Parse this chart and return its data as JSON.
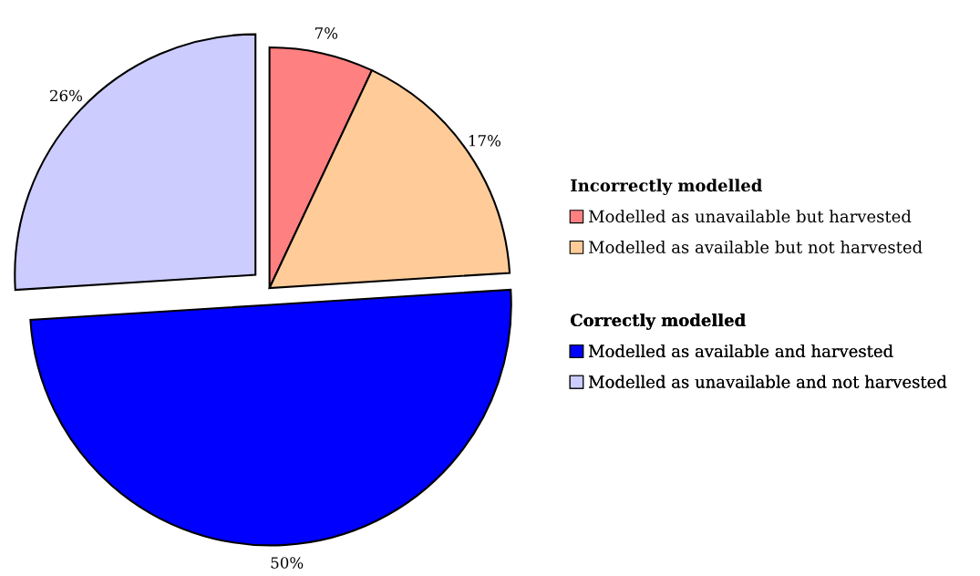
{
  "chart_data": {
    "type": "pie",
    "categories": [
      "Modelled as unavailable but harvested",
      "Modelled as available but not harvested",
      "Modelled as available and harvested",
      "Modelled as unavailable and not harvested"
    ],
    "values": [
      7,
      17,
      50,
      26
    ],
    "colors": [
      "#ff8080",
      "#ffcc99",
      "#0000ff",
      "#ccccff"
    ],
    "value_labels": [
      "7%",
      "17%",
      "50%",
      "26%"
    ],
    "annotations": [
      "Incorrectly modelled",
      "Correctly modelled"
    ],
    "legend": "right"
  }
}
